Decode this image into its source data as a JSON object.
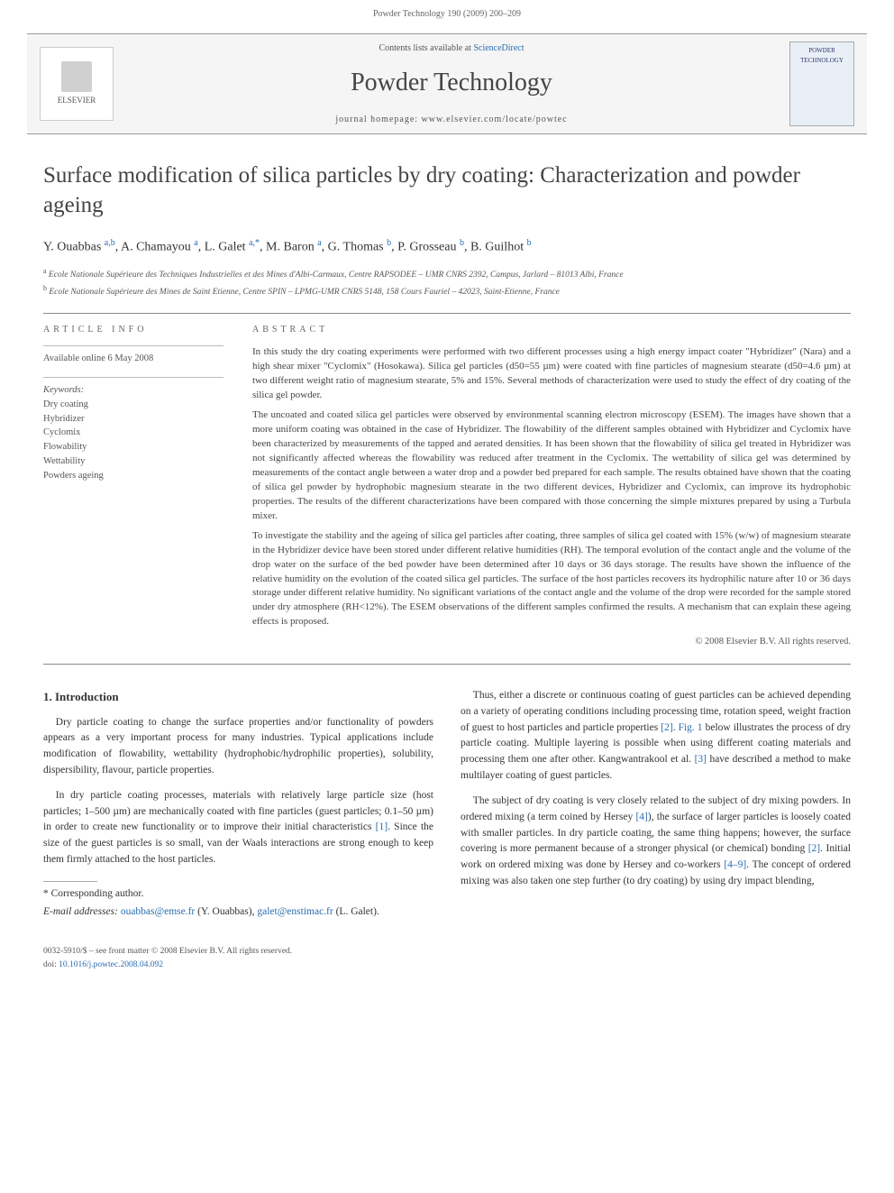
{
  "header": {
    "citation": "Powder Technology 190 (2009) 200–209"
  },
  "banner": {
    "publisher": "ELSEVIER",
    "contents_line_prefix": "Contents lists available at ",
    "contents_link": "ScienceDirect",
    "journal_title": "Powder Technology",
    "homepage_prefix": "journal homepage: ",
    "homepage_url": "www.elsevier.com/locate/powtec",
    "cover_label": "POWDER TECHNOLOGY"
  },
  "article": {
    "title": "Surface modification of silica particles by dry coating: Characterization and powder ageing",
    "authors_html": "Y. Ouabbas <sup>a,b</sup>, A. Chamayou <sup>a</sup>, L. Galet <sup>a,*</sup>, M. Baron <sup>a</sup>, G. Thomas <sup>b</sup>, P. Grosseau <sup>b</sup>, B. Guilhot <sup>b</sup>",
    "affiliations": [
      "a Ecole Nationale Supérieure des Techniques Industrielles et des Mines d'Albi-Carmaux, Centre RAPSODEE – UMR CNRS 2392, Campus, Jarlard – 81013 Albi, France",
      "b Ecole Nationale Supérieure des Mines de Saint Etienne, Centre SPIN – LPMG-UMR CNRS 5148, 158 Cours Fauriel – 42023, Saint-Etienne, France"
    ]
  },
  "info": {
    "section_label": "ARTICLE INFO",
    "history": "Available online 6 May 2008",
    "keywords_label": "Keywords:",
    "keywords": [
      "Dry coating",
      "Hybridizer",
      "Cyclomix",
      "Flowability",
      "Wettability",
      "Powders ageing"
    ]
  },
  "abstract": {
    "section_label": "ABSTRACT",
    "paragraphs": [
      "In this study the dry coating experiments were performed with two different processes using a high energy impact coater \"Hybridizer\" (Nara) and a high shear mixer \"Cyclomix\" (Hosokawa). Silica gel particles (d50=55 µm) were coated with fine particles of magnesium stearate (d50=4.6 µm) at two different weight ratio of magnesium stearate, 5% and 15%. Several methods of characterization were used to study the effect of dry coating of the silica gel powder.",
      "The uncoated and coated silica gel particles were observed by environmental scanning electron microscopy (ESEM). The images have shown that a more uniform coating was obtained in the case of Hybridizer. The flowability of the different samples obtained with Hybridizer and Cyclomix have been characterized by measurements of the tapped and aerated densities. It has been shown that the flowability of silica gel treated in Hybridizer was not significantly affected whereas the flowability was reduced after treatment in the Cyclomix. The wettability of silica gel was determined by measurements of the contact angle between a water drop and a powder bed prepared for each sample. The results obtained have shown that the coating of silica gel powder by hydrophobic magnesium stearate in the two different devices, Hybridizer and Cyclomix, can improve its hydrophobic properties. The results of the different characterizations have been compared with those concerning the simple mixtures prepared by using a Turbula mixer.",
      "To investigate the stability and the ageing of silica gel particles after coating, three samples of silica gel coated with 15% (w/w) of magnesium stearate in the Hybridizer device have been stored under different relative humidities (RH). The temporal evolution of the contact angle and the volume of the drop water on the surface of the bed powder have been determined after 10 days or 36 days storage. The results have shown the influence of the relative humidity on the evolution of the coated silica gel particles. The surface of the host particles recovers its hydrophilic nature after 10 or 36 days storage under different relative humidity. No significant variations of the contact angle and the volume of the drop were recorded for the sample stored under dry atmosphere (RH<12%). The ESEM observations of the different samples confirmed the results. A mechanism that can explain these ageing effects is proposed."
    ],
    "copyright": "© 2008 Elsevier B.V. All rights reserved."
  },
  "body": {
    "heading": "1. Introduction",
    "left_paragraphs": [
      "Dry particle coating to change the surface properties and/or functionality of powders appears as a very important process for many industries. Typical applications include modification of flowability, wettability (hydrophobic/hydrophilic properties), solubility, dispersibility, flavour, particle properties.",
      "In dry particle coating processes, materials with relatively large particle size (host particles; 1–500 µm) are mechanically coated with fine particles (guest particles; 0.1–50 µm) in order to create new functionality or to improve their initial characteristics [1]. Since the size of the guest particles is so small, van der Waals interactions are strong enough to keep them firmly attached to the host particles."
    ],
    "right_paragraphs": [
      "Thus, either a discrete or continuous coating of guest particles can be achieved depending on a variety of operating conditions including processing time, rotation speed, weight fraction of guest to host particles and particle properties [2]. Fig. 1 below illustrates the process of dry particle coating. Multiple layering is possible when using different coating materials and processing them one after other. Kangwantrakool et al. [3] have described a method to make multilayer coating of guest particles.",
      "The subject of dry coating is very closely related to the subject of dry mixing powders. In ordered mixing (a term coined by Hersey [4]), the surface of larger particles is loosely coated with smaller particles. In dry particle coating, the same thing happens; however, the surface covering is more permanent because of a stronger physical (or chemical) bonding [2]. Initial work on ordered mixing was done by Hersey and co-workers [4–9]. The concept of ordered mixing was also taken one step further (to dry coating) by using dry impact blending,"
    ]
  },
  "footnotes": {
    "corresponding": "* Corresponding author.",
    "emails_label": "E-mail addresses: ",
    "email1": "ouabbas@emse.fr",
    "email1_who": " (Y. Ouabbas), ",
    "email2": "galet@enstimac.fr",
    "email2_who": " (L. Galet)."
  },
  "footer": {
    "issn": "0032-5910/$ – see front matter © 2008 Elsevier B.V. All rights reserved.",
    "doi_label": "doi:",
    "doi": "10.1016/j.powtec.2008.04.092"
  },
  "colors": {
    "link": "#2a6db0",
    "text": "#333333",
    "muted": "#666666"
  }
}
